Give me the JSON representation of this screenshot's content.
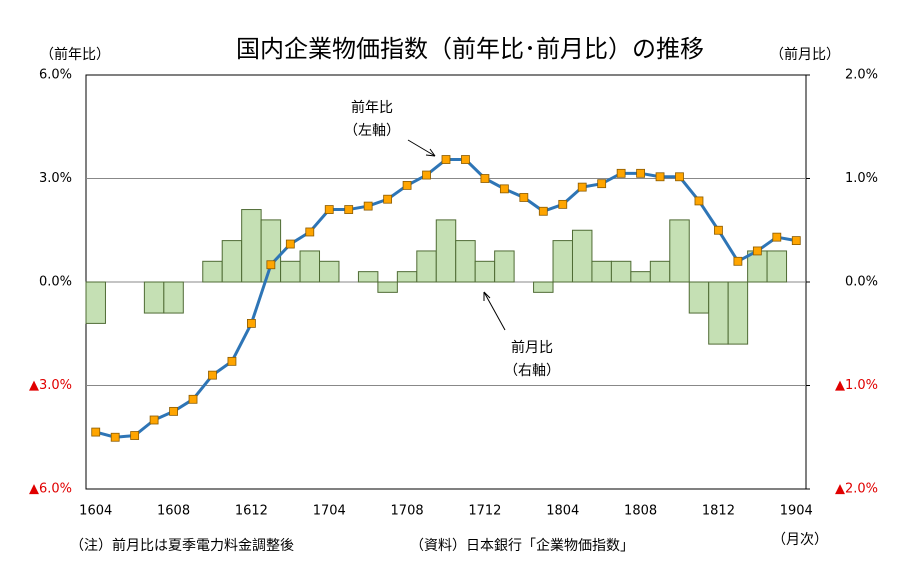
{
  "chart_data": {
    "type": "bar_line",
    "title": "国内企業物価指数（前年比･前月比）の推移",
    "y_axis_label": "（前年比）",
    "y2_axis_label": "（前月比）",
    "x_axis_label": "（月次）",
    "notes": [
      "（注）前月比は夏季電力料金調整後",
      "（資料）日本銀行「企業物価指数」"
    ],
    "annotations": [
      {
        "text": [
          "前年比",
          "（左軸）"
        ]
      },
      {
        "text": [
          "前月比",
          "（右軸）"
        ]
      }
    ],
    "categories": [
      "1604",
      null,
      null,
      null,
      "1608",
      null,
      null,
      null,
      "1612",
      null,
      null,
      null,
      "1704",
      null,
      null,
      null,
      "1708",
      null,
      null,
      null,
      "1712",
      null,
      null,
      null,
      "1804",
      null,
      null,
      null,
      "1808",
      null,
      null,
      null,
      "1812",
      null,
      null,
      null,
      "1904"
    ],
    "series": [
      {
        "name": "前月比",
        "type": "bar",
        "axis": "y2",
        "color": "#c5e0b4",
        "edge_color": "#4f6b34",
        "values": [
          -0.4,
          0,
          0,
          -0.3,
          -0.3,
          0,
          0.2,
          0.4,
          0.7,
          0.6,
          0.2,
          0.3,
          0.2,
          0,
          0.1,
          -0.1,
          0.1,
          0.3,
          0.6,
          0.4,
          0.2,
          0.3,
          0,
          -0.1,
          0.4,
          0.5,
          0.2,
          0.2,
          0.1,
          0.2,
          0.6,
          -0.3,
          -0.6,
          -0.6,
          0.3,
          0.3,
          null
        ]
      },
      {
        "name": "前年比",
        "type": "line",
        "axis": "y",
        "color": "#2e75b6",
        "marker_color": "#ffa500",
        "values": [
          -4.35,
          -4.5,
          -4.45,
          -4.0,
          -3.75,
          -3.4,
          -2.7,
          -2.3,
          -1.2,
          0.5,
          1.1,
          1.45,
          2.1,
          2.1,
          2.2,
          2.4,
          2.8,
          3.1,
          3.55,
          3.55,
          3.0,
          2.7,
          2.45,
          2.05,
          2.25,
          2.75,
          2.85,
          3.15,
          3.15,
          3.05,
          3.05,
          2.35,
          1.5,
          0.6,
          0.9,
          1.3,
          1.2
        ]
      }
    ],
    "ylim": [
      -6,
      6
    ],
    "yticks": [
      {
        "value": 6,
        "label": "6.0%"
      },
      {
        "value": 3,
        "label": "3.0%"
      },
      {
        "value": 0,
        "label": "0.0%"
      },
      {
        "value": -3,
        "label": "▲3.0%"
      },
      {
        "value": -6,
        "label": "▲6.0%"
      }
    ],
    "y2lim": [
      -2,
      2
    ],
    "y2ticks": [
      {
        "value": 2,
        "label": "2.0%"
      },
      {
        "value": 1,
        "label": "1.0%"
      },
      {
        "value": 0,
        "label": "0.0%"
      },
      {
        "value": -1,
        "label": "▲1.0%"
      },
      {
        "value": -2,
        "label": "▲2.0%"
      }
    ],
    "negative_tick_color": "#e00000",
    "grid": true
  }
}
